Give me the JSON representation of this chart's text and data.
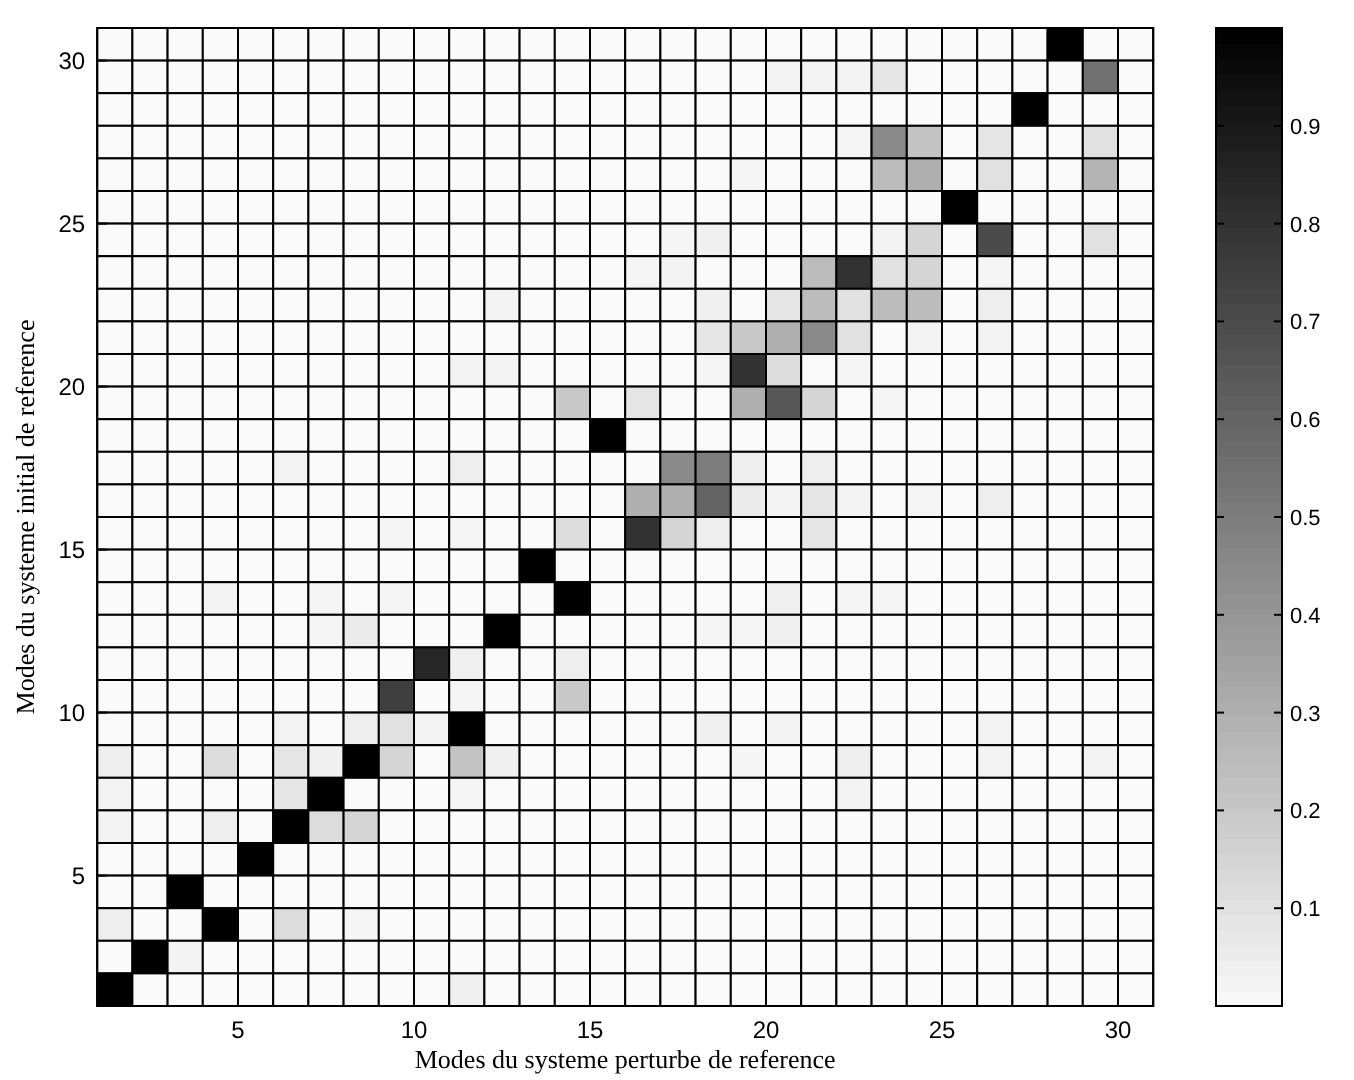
{
  "chart_data": {
    "type": "heatmap",
    "xlabel": "Modes du systeme perturbe de reference",
    "ylabel": "Modes du systeme initial de reference",
    "xlim": [
      1,
      31
    ],
    "xticks": [
      5,
      10,
      15,
      20,
      25,
      30
    ],
    "ylim": [
      1,
      31
    ],
    "yticks": [
      5,
      10,
      15,
      20,
      25,
      30
    ],
    "clim": [
      0,
      1
    ],
    "cticks": [
      0.1,
      0.2,
      0.3,
      0.4,
      0.5,
      0.6,
      0.7,
      0.8,
      0.9
    ],
    "cells": [
      [
        0,
        0,
        0,
        0,
        0,
        0,
        0,
        0,
        0,
        0,
        0,
        0,
        0,
        0,
        0,
        0,
        0,
        0,
        0,
        0,
        0,
        0,
        0,
        0,
        0,
        0,
        0,
        1,
        0,
        0
      ],
      [
        0,
        0,
        0,
        0,
        0,
        0,
        0,
        0,
        0,
        0,
        0,
        0,
        0,
        0,
        0,
        0,
        0,
        0,
        0,
        0.03,
        0.03,
        0.03,
        0.08,
        0,
        0,
        0,
        0,
        0,
        0.55,
        0
      ],
      [
        0,
        0,
        0,
        0,
        0,
        0,
        0,
        0,
        0,
        0,
        0,
        0,
        0,
        0,
        0,
        0,
        0,
        0,
        0,
        0,
        0,
        0,
        0,
        0,
        0,
        0,
        1,
        0,
        0,
        0
      ],
      [
        0,
        0,
        0,
        0,
        0,
        0,
        0,
        0,
        0,
        0,
        0,
        0,
        0,
        0,
        0,
        0,
        0,
        0,
        0,
        0,
        0,
        0.02,
        0.45,
        0.22,
        0,
        0.08,
        0,
        0,
        0.1,
        0
      ],
      [
        0,
        0,
        0,
        0,
        0,
        0,
        0,
        0,
        0,
        0,
        0,
        0,
        0,
        0,
        0,
        0,
        0,
        0,
        0.02,
        0,
        0,
        0,
        0.25,
        0.3,
        0,
        0.1,
        0,
        0,
        0.28,
        0
      ],
      [
        0,
        0,
        0,
        0,
        0,
        0,
        0,
        0,
        0,
        0,
        0,
        0,
        0,
        0,
        0,
        0,
        0,
        0,
        0,
        0,
        0,
        0,
        0,
        0,
        1,
        0,
        0,
        0,
        0,
        0
      ],
      [
        0,
        0,
        0,
        0,
        0,
        0,
        0,
        0,
        0,
        0,
        0,
        0,
        0,
        0,
        0,
        0,
        0.02,
        0.04,
        0,
        0,
        0,
        0,
        0.03,
        0.15,
        0,
        0.7,
        0,
        0,
        0.1,
        0
      ],
      [
        0,
        0,
        0,
        0,
        0,
        0,
        0,
        0,
        0,
        0,
        0,
        0,
        0,
        0,
        0,
        0.02,
        0.03,
        0,
        0,
        0,
        0.25,
        0.8,
        0.1,
        0.15,
        0,
        0.02,
        0,
        0,
        0,
        0
      ],
      [
        0,
        0,
        0,
        0,
        0,
        0,
        0,
        0,
        0,
        0,
        0,
        0.03,
        0,
        0,
        0,
        0,
        0,
        0.04,
        0,
        0.08,
        0.25,
        0.1,
        0.25,
        0.25,
        0,
        0.05,
        0,
        0,
        0,
        0
      ],
      [
        0,
        0,
        0,
        0,
        0,
        0,
        0,
        0,
        0,
        0,
        0,
        0,
        0,
        0,
        0,
        0,
        0,
        0.08,
        0.2,
        0.3,
        0.45,
        0.1,
        0,
        0.03,
        0,
        0.03,
        0,
        0,
        0,
        0
      ],
      [
        0,
        0,
        0,
        0,
        0,
        0,
        0,
        0,
        0,
        0,
        0.03,
        0.03,
        0,
        0,
        0,
        0,
        0,
        0.02,
        0.8,
        0.12,
        0,
        0.02,
        0,
        0,
        0,
        0,
        0,
        0,
        0,
        0
      ],
      [
        0,
        0,
        0,
        0,
        0,
        0,
        0,
        0,
        0,
        0,
        0,
        0,
        0,
        0.2,
        0,
        0.08,
        0,
        0,
        0.3,
        0.65,
        0.15,
        0,
        0.02,
        0,
        0,
        0,
        0,
        0,
        0,
        0
      ],
      [
        0,
        0,
        0,
        0,
        0,
        0,
        0,
        0,
        0,
        0,
        0,
        0,
        0,
        0,
        1,
        0,
        0,
        0,
        0,
        0,
        0,
        0,
        0,
        0,
        0,
        0,
        0,
        0,
        0,
        0
      ],
      [
        0,
        0,
        0,
        0,
        0,
        0.03,
        0,
        0,
        0,
        0,
        0.05,
        0,
        0,
        0,
        0,
        0,
        0.45,
        0.5,
        0.05,
        0,
        0.05,
        0,
        0,
        0,
        0,
        0,
        0,
        0,
        0,
        0
      ],
      [
        0,
        0,
        0,
        0,
        0,
        0,
        0,
        0,
        0,
        0,
        0,
        0,
        0,
        0,
        0,
        0.3,
        0.3,
        0.6,
        0.06,
        0.03,
        0.08,
        0.03,
        0,
        0.02,
        0,
        0.05,
        0,
        0,
        0,
        0
      ],
      [
        0,
        0,
        0,
        0,
        0,
        0,
        0,
        0,
        0.02,
        0,
        0.02,
        0,
        0,
        0.12,
        0,
        0.8,
        0.15,
        0.05,
        0,
        0,
        0.08,
        0,
        0,
        0,
        0,
        0,
        0,
        0,
        0,
        0
      ],
      [
        0,
        0,
        0,
        0,
        0,
        0,
        0,
        0,
        0,
        0,
        0,
        0,
        1,
        0,
        0,
        0,
        0,
        0,
        0,
        0,
        0,
        0,
        0,
        0,
        0,
        0,
        0,
        0,
        0,
        0
      ],
      [
        0,
        0,
        0,
        0.03,
        0,
        0,
        0.02,
        0,
        0.02,
        0,
        0,
        0,
        0,
        1,
        0,
        0,
        0,
        0,
        0,
        0.04,
        0,
        0.02,
        0.02,
        0,
        0,
        0,
        0,
        0,
        0,
        0
      ],
      [
        0,
        0,
        0,
        0,
        0,
        0,
        0.02,
        0.06,
        0,
        0,
        0,
        1,
        0,
        0,
        0,
        0,
        0,
        0.02,
        0.02,
        0.04,
        0,
        0,
        0,
        0,
        0,
        0,
        0,
        0,
        0,
        0
      ],
      [
        0,
        0,
        0,
        0,
        0,
        0,
        0,
        0,
        0,
        0.85,
        0.04,
        0,
        0,
        0.05,
        0,
        0,
        0,
        0,
        0,
        0,
        0,
        0,
        0,
        0,
        0,
        0,
        0,
        0,
        0,
        0
      ],
      [
        0,
        0,
        0,
        0,
        0,
        0,
        0,
        0,
        0.75,
        0,
        0.02,
        0,
        0,
        0.2,
        0,
        0,
        0,
        0,
        0,
        0,
        0,
        0,
        0,
        0,
        0,
        0,
        0,
        0,
        0,
        0
      ],
      [
        0,
        0,
        0,
        0,
        0,
        0.03,
        0,
        0.05,
        0.1,
        0.03,
        1,
        0,
        0,
        0,
        0,
        0,
        0,
        0.04,
        0,
        0.03,
        0,
        0,
        0,
        0,
        0,
        0.03,
        0,
        0,
        0,
        0
      ],
      [
        0.05,
        0,
        0,
        0.12,
        0,
        0.08,
        0.04,
        1,
        0.15,
        0,
        0.22,
        0.04,
        0,
        0,
        0,
        0,
        0,
        0,
        0.02,
        0,
        0,
        0.05,
        0,
        0,
        0,
        0.03,
        0,
        0,
        0.03,
        0
      ],
      [
        0.03,
        0,
        0,
        0,
        0,
        0.08,
        1,
        0,
        0,
        0,
        0.02,
        0,
        0,
        0,
        0,
        0,
        0,
        0,
        0,
        0,
        0,
        0.03,
        0,
        0,
        0,
        0,
        0,
        0,
        0,
        0
      ],
      [
        0.03,
        0,
        0,
        0.05,
        0,
        1,
        0.12,
        0.15,
        0,
        0,
        0,
        0,
        0,
        0,
        0,
        0,
        0,
        0,
        0,
        0,
        0,
        0,
        0,
        0,
        0,
        0,
        0,
        0,
        0,
        0
      ],
      [
        0,
        0,
        0,
        0,
        1,
        0,
        0,
        0,
        0,
        0,
        0,
        0,
        0,
        0,
        0,
        0,
        0,
        0,
        0,
        0,
        0,
        0,
        0,
        0,
        0,
        0,
        0,
        0,
        0,
        0
      ],
      [
        0,
        0,
        1,
        0,
        0,
        0,
        0,
        0,
        0,
        0,
        0,
        0,
        0,
        0,
        0,
        0,
        0,
        0,
        0,
        0,
        0,
        0,
        0,
        0,
        0,
        0,
        0,
        0,
        0,
        0
      ],
      [
        0.05,
        0,
        0,
        1,
        0,
        0.12,
        0,
        0.02,
        0,
        0,
        0,
        0,
        0,
        0,
        0,
        0,
        0,
        0,
        0,
        0,
        0,
        0,
        0,
        0,
        0,
        0,
        0,
        0,
        0,
        0
      ],
      [
        0,
        1,
        0.03,
        0,
        0,
        0,
        0,
        0,
        0,
        0,
        0,
        0,
        0,
        0,
        0,
        0,
        0,
        0,
        0,
        0,
        0,
        0,
        0,
        0,
        0,
        0,
        0,
        0,
        0,
        0
      ],
      [
        1,
        0,
        0,
        0,
        0,
        0,
        0,
        0,
        0,
        0,
        0.04,
        0,
        0,
        0,
        0,
        0,
        0,
        0,
        0,
        0,
        0,
        0,
        0,
        0,
        0,
        0,
        0,
        0,
        0,
        0
      ]
    ]
  }
}
